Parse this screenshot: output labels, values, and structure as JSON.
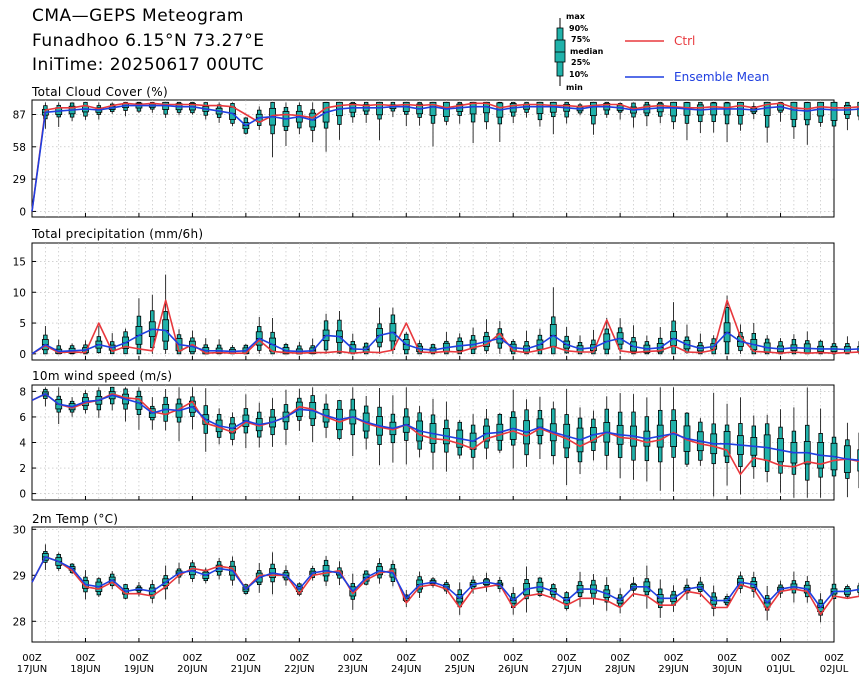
{
  "header": {
    "title": "CMA—GEPS Meteogram",
    "location": "Funadhoo 6.15°N 73.27°E",
    "init": "IniTime: 20250617 00UTC"
  },
  "legend": {
    "box_labels": [
      "max",
      "90%",
      "75%",
      "median",
      "25%",
      "10%",
      "min"
    ],
    "ctrl_label": "Ctrl",
    "mean_label": "Ensemble Mean",
    "ctrl_color": "#e8383d",
    "mean_color": "#1f3fe0",
    "box_color": "#20b2aa"
  },
  "x_axis": {
    "tick_hour": "00Z",
    "dates": [
      "17JUN",
      "18JUN",
      "19JUN",
      "20JUN",
      "21JUN",
      "22JUN",
      "23JUN",
      "24JUN",
      "25JUN",
      "26JUN",
      "27JUN",
      "28JUN",
      "29JUN",
      "30JUN",
      "01JUL",
      "02JUL"
    ]
  },
  "chart_data": [
    {
      "type": "box",
      "title": "Total Cloud Cover (%)",
      "ylim": [
        -5,
        100
      ],
      "yticks": [
        0,
        29,
        58,
        87
      ],
      "grid": true,
      "x_hours_step": 6,
      "ctrl": [
        0,
        91,
        93,
        93,
        95,
        92,
        95,
        97,
        96,
        97,
        96,
        96,
        96,
        95,
        95,
        94,
        87,
        80,
        86,
        87,
        86,
        84,
        93,
        95,
        96,
        95,
        96,
        95,
        96,
        95,
        96,
        93,
        95,
        97,
        97,
        93,
        95,
        96,
        96,
        95,
        95,
        94,
        95,
        96,
        96,
        92,
        94,
        95,
        94,
        93,
        93,
        94,
        93,
        95,
        93,
        96,
        97,
        93,
        92,
        94,
        93,
        93,
        94,
        93
      ],
      "mean": [
        0,
        89,
        90,
        91,
        92,
        91,
        93,
        95,
        95,
        95,
        95,
        94,
        94,
        92,
        90,
        88,
        77,
        84,
        85,
        83,
        85,
        82,
        89,
        92,
        93,
        93,
        93,
        94,
        94,
        92,
        94,
        92,
        93,
        94,
        94,
        91,
        93,
        94,
        94,
        94,
        93,
        92,
        94,
        94,
        93,
        91,
        92,
        93,
        93,
        92,
        91,
        92,
        92,
        92,
        91,
        93,
        94,
        91,
        90,
        92,
        91,
        91,
        92,
        93
      ]
    },
    {
      "type": "box",
      "title": "Total precipitation (mm/6h)",
      "ylim": [
        -1,
        18
      ],
      "yticks": [
        0,
        5,
        10,
        15
      ],
      "grid": true,
      "x_hours_step": 6,
      "ctrl": [
        0,
        1.3,
        0.2,
        0.3,
        0.2,
        5.0,
        0.4,
        1.2,
        0.8,
        0.5,
        8.7,
        0.4,
        1.5,
        0.1,
        0.2,
        0.1,
        0.1,
        2.2,
        0.4,
        0.2,
        0.1,
        0.2,
        0.2,
        0.4,
        0.1,
        0.3,
        0.2,
        0.6,
        5.0,
        0.3,
        0.2,
        0.4,
        0.3,
        1.0,
        1.5,
        3.3,
        0.5,
        0.2,
        0.6,
        1.2,
        0.5,
        0.3,
        0.3,
        5.5,
        0.5,
        0.2,
        0.4,
        0.5,
        1.3,
        0.3,
        0.2,
        0.6,
        8.7,
        2.8,
        0.4,
        0.3,
        0.1,
        0.3,
        0.1,
        0.2,
        0.1,
        0.2,
        0.3,
        0.4
      ],
      "mean": [
        0,
        1.5,
        0.4,
        0.5,
        0.6,
        1.5,
        1.0,
        1.8,
        3.0,
        4.0,
        3.8,
        1.5,
        1.2,
        0.5,
        0.5,
        0.4,
        0.5,
        2.5,
        1.5,
        0.5,
        0.4,
        0.5,
        3.0,
        2.8,
        0.8,
        0.7,
        3.0,
        3.5,
        1.5,
        0.8,
        0.6,
        1.0,
        1.3,
        1.5,
        2.0,
        2.5,
        1.0,
        0.8,
        1.5,
        3.0,
        1.5,
        0.8,
        1.0,
        2.0,
        2.5,
        1.2,
        0.8,
        1.0,
        2.5,
        1.5,
        0.9,
        1.2,
        3.5,
        2.0,
        1.5,
        1.0,
        0.8,
        1.0,
        0.9,
        0.8,
        0.8,
        0.7,
        0.8,
        0.9
      ]
    },
    {
      "type": "box",
      "title": "10m wind speed (m/s)",
      "ylim": [
        -0.5,
        8.5
      ],
      "yticks": [
        0,
        2,
        4,
        6,
        8
      ],
      "grid": true,
      "x_hours_step": 6,
      "ctrl": [
        7.3,
        7.8,
        7.0,
        6.7,
        7.1,
        7.3,
        7.8,
        7.5,
        7.4,
        6.4,
        6.2,
        6.6,
        7.2,
        5.5,
        5.2,
        4.8,
        5.6,
        5.3,
        5.6,
        6.0,
        6.8,
        6.6,
        6.0,
        5.6,
        6.0,
        5.5,
        5.2,
        5.0,
        5.4,
        4.6,
        4.3,
        4.2,
        3.9,
        3.5,
        4.3,
        4.6,
        4.9,
        4.5,
        5.1,
        4.7,
        4.3,
        3.7,
        4.2,
        4.8,
        4.4,
        4.3,
        4.0,
        4.2,
        4.8,
        4.2,
        3.9,
        3.7,
        3.4,
        1.5,
        2.8,
        2.6,
        2.2,
        2.1,
        2.5,
        2.3,
        2.6,
        2.7,
        2.5,
        3.4
      ],
      "mean": [
        7.3,
        7.8,
        7.0,
        6.8,
        7.2,
        7.3,
        7.7,
        7.4,
        7.1,
        6.3,
        6.6,
        6.5,
        6.8,
        5.8,
        5.3,
        5.1,
        5.7,
        5.4,
        5.6,
        6.0,
        6.6,
        6.5,
        6.1,
        5.8,
        6.0,
        5.6,
        5.3,
        5.1,
        5.4,
        4.9,
        4.7,
        4.5,
        4.3,
        4.1,
        4.7,
        4.8,
        5.1,
        4.8,
        5.2,
        4.8,
        4.5,
        4.2,
        4.6,
        4.8,
        4.6,
        4.5,
        4.3,
        4.5,
        4.7,
        4.3,
        4.1,
        3.9,
        3.9,
        3.8,
        3.7,
        3.6,
        3.4,
        3.2,
        3.2,
        3.0,
        2.9,
        2.7,
        2.6,
        2.9
      ]
    },
    {
      "type": "box",
      "title": "2m Temp (°C)",
      "ylim": [
        27.55,
        30.05
      ],
      "yticks": [
        28,
        29,
        30
      ],
      "grid": true,
      "x_hours_step": 6,
      "ctrl": [
        28.85,
        29.4,
        29.3,
        29.1,
        28.75,
        28.7,
        28.85,
        28.6,
        28.6,
        28.55,
        28.75,
        29.0,
        29.15,
        29.1,
        29.2,
        29.15,
        28.7,
        29.0,
        29.0,
        29.0,
        28.6,
        29.0,
        29.05,
        29.1,
        28.6,
        28.9,
        29.05,
        29.1,
        28.4,
        28.75,
        28.8,
        28.7,
        28.3,
        28.7,
        28.75,
        28.8,
        28.3,
        28.55,
        28.6,
        28.5,
        28.35,
        28.5,
        28.5,
        28.45,
        28.3,
        28.6,
        28.55,
        28.35,
        28.35,
        28.65,
        28.6,
        28.3,
        28.3,
        28.8,
        28.7,
        28.25,
        28.65,
        28.7,
        28.65,
        28.15,
        28.55,
        28.5,
        28.55,
        28.3
      ],
      "mean": [
        28.85,
        29.4,
        29.3,
        29.15,
        28.8,
        28.75,
        28.9,
        28.65,
        28.7,
        28.65,
        28.85,
        29.05,
        29.1,
        29.0,
        29.15,
        29.1,
        28.7,
        28.95,
        29.05,
        29.0,
        28.7,
        29.05,
        29.1,
        29.05,
        28.65,
        28.95,
        29.1,
        29.05,
        28.5,
        28.8,
        28.85,
        28.75,
        28.5,
        28.8,
        28.85,
        28.8,
        28.45,
        28.7,
        28.75,
        28.65,
        28.45,
        28.7,
        28.7,
        28.6,
        28.45,
        28.75,
        28.75,
        28.5,
        28.5,
        28.7,
        28.75,
        28.45,
        28.45,
        28.85,
        28.8,
        28.4,
        28.7,
        28.75,
        28.7,
        28.3,
        28.65,
        28.65,
        28.7,
        28.4
      ]
    }
  ]
}
